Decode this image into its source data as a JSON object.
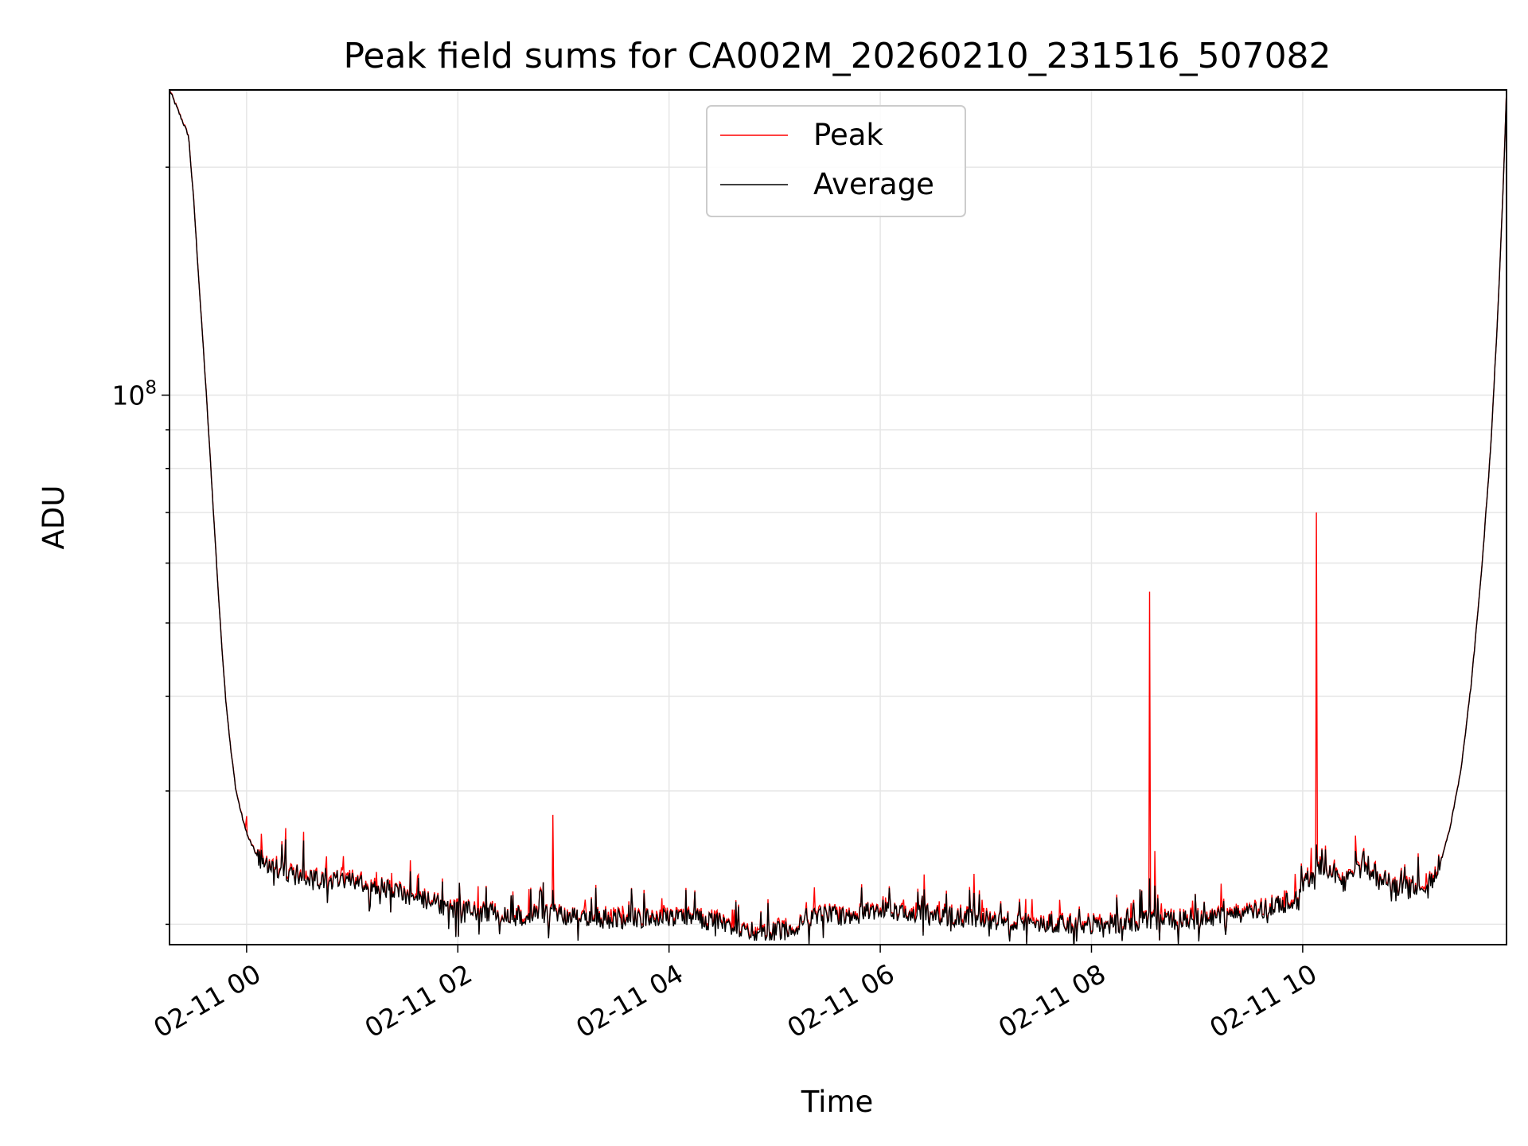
{
  "chart_data": {
    "type": "line",
    "title": "Peak field sums for CA002M_20260210_231516_507082",
    "xlabel": "Time",
    "ylabel": "ADU",
    "yscale": "log",
    "x_unit": "hours after 2026-02-11 00:00",
    "xlim": [
      -0.73,
      11.93
    ],
    "ylim": [
      18800000,
      253000000
    ],
    "grid": true,
    "legend_position": "upper center",
    "x_ticks": [
      {
        "value": 0,
        "label": "02-11 00"
      },
      {
        "value": 2,
        "label": "02-11 02"
      },
      {
        "value": 4,
        "label": "02-11 04"
      },
      {
        "value": 6,
        "label": "02-11 06"
      },
      {
        "value": 8,
        "label": "02-11 08"
      },
      {
        "value": 10,
        "label": "02-11 10"
      }
    ],
    "y_major_ticks": [
      {
        "value": 100000000,
        "base": "10",
        "exponent": "8"
      }
    ],
    "y_minor_ticks": [
      20000000,
      30000000,
      40000000,
      50000000,
      60000000,
      70000000,
      80000000,
      90000000,
      200000000
    ],
    "baseline": [
      [
        -0.73,
        253000000
      ],
      [
        -0.55,
        220000000
      ],
      [
        -0.5,
        180000000
      ],
      [
        -0.45,
        140000000
      ],
      [
        -0.4,
        110000000
      ],
      [
        -0.35,
        85000000
      ],
      [
        -0.3,
        65000000
      ],
      [
        -0.25,
        50000000
      ],
      [
        -0.2,
        40000000
      ],
      [
        -0.15,
        34000000
      ],
      [
        -0.1,
        30000000
      ],
      [
        -0.05,
        28000000
      ],
      [
        0.0,
        26300000
      ],
      [
        0.1,
        24600000
      ],
      [
        0.2,
        24000000
      ],
      [
        0.4,
        23400000
      ],
      [
        0.6,
        23100000
      ],
      [
        0.8,
        22900000
      ],
      [
        1.0,
        22800000
      ],
      [
        1.2,
        22600000
      ],
      [
        1.4,
        22100000
      ],
      [
        1.6,
        21700000
      ],
      [
        1.8,
        21300000
      ],
      [
        2.0,
        20900000
      ],
      [
        2.3,
        20700000
      ],
      [
        2.6,
        20500000
      ],
      [
        2.9,
        20700000
      ],
      [
        3.0,
        20600000
      ],
      [
        3.2,
        20400000
      ],
      [
        3.6,
        20300000
      ],
      [
        4.0,
        20400000
      ],
      [
        4.3,
        20300000
      ],
      [
        4.6,
        19900000
      ],
      [
        4.8,
        19600000
      ],
      [
        5.1,
        19600000
      ],
      [
        5.3,
        20300000
      ],
      [
        5.5,
        20600000
      ],
      [
        5.7,
        20400000
      ],
      [
        6.0,
        21000000
      ],
      [
        6.3,
        20700000
      ],
      [
        6.6,
        20500000
      ],
      [
        7.0,
        20300000
      ],
      [
        7.5,
        20100000
      ],
      [
        7.9,
        20000000
      ],
      [
        8.3,
        20000000
      ],
      [
        8.55,
        20300000
      ],
      [
        8.75,
        20200000
      ],
      [
        9.0,
        20300000
      ],
      [
        9.3,
        20500000
      ],
      [
        9.6,
        20800000
      ],
      [
        9.9,
        21500000
      ],
      [
        10.0,
        22500000
      ],
      [
        10.15,
        23800000
      ],
      [
        10.3,
        23300000
      ],
      [
        10.4,
        22700000
      ],
      [
        10.5,
        23600000
      ],
      [
        10.7,
        23400000
      ],
      [
        10.9,
        22500000
      ],
      [
        11.1,
        22200000
      ],
      [
        11.2,
        22600000
      ],
      [
        11.3,
        24000000
      ],
      [
        11.4,
        27000000
      ],
      [
        11.5,
        32000000
      ],
      [
        11.6,
        42000000
      ],
      [
        11.7,
        60000000
      ],
      [
        11.78,
        85000000
      ],
      [
        11.85,
        130000000
      ],
      [
        11.9,
        190000000
      ],
      [
        11.93,
        253000000
      ]
    ],
    "spikes": [
      {
        "x": 0.0,
        "peak": 27800000,
        "average": 26500000
      },
      {
        "x": 0.15,
        "peak": 24700000,
        "average": 24000000
      },
      {
        "x": 0.37,
        "peak": 26800000,
        "average": 25900000
      },
      {
        "x": 0.54,
        "peak": 26500000,
        "average": 25800000
      },
      {
        "x": 0.9,
        "peak": 23800000,
        "average": 23200000
      },
      {
        "x": 1.55,
        "peak": 24300000,
        "average": 23500000
      },
      {
        "x": 2.9,
        "peak": 27900000,
        "average": 22200000
      },
      {
        "x": 5.3,
        "peak": 21400000,
        "average": 21000000
      },
      {
        "x": 6.05,
        "peak": 21700000,
        "average": 21400000
      },
      {
        "x": 8.55,
        "peak": 55000000,
        "average": 23000000
      },
      {
        "x": 8.6,
        "peak": 25000000,
        "average": 22500000
      },
      {
        "x": 10.13,
        "peak": 70000000,
        "average": 25500000
      },
      {
        "x": 10.5,
        "peak": 26200000,
        "average": 25000000
      }
    ],
    "series": [
      {
        "name": "Peak",
        "color": "#ff0000"
      },
      {
        "name": "Average",
        "color": "#000000"
      }
    ]
  }
}
